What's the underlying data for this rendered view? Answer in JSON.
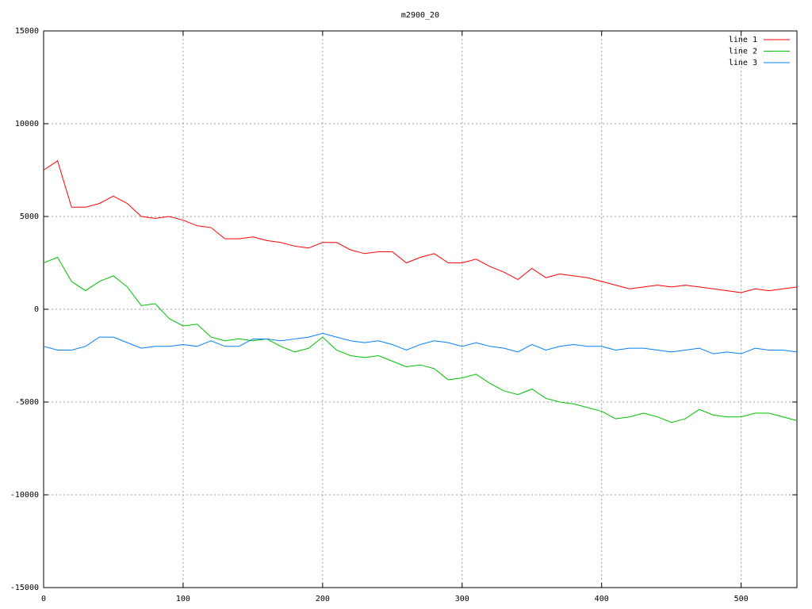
{
  "chart_data": {
    "type": "line",
    "title": "m2900_20",
    "x": [
      0,
      10,
      20,
      30,
      40,
      50,
      60,
      70,
      80,
      90,
      100,
      110,
      120,
      130,
      140,
      150,
      160,
      170,
      180,
      190,
      200,
      210,
      220,
      230,
      240,
      250,
      260,
      270,
      280,
      290,
      300,
      310,
      320,
      330,
      340,
      350,
      360,
      370,
      380,
      390,
      400,
      410,
      420,
      430,
      440,
      450,
      460,
      470,
      480,
      490,
      500,
      510,
      520,
      530,
      540
    ],
    "series": [
      {
        "name": "line 1",
        "color": "#ff0000",
        "values": [
          7500,
          8000,
          5500,
          5500,
          5700,
          6100,
          5700,
          5000,
          4900,
          5000,
          4800,
          4500,
          4400,
          3800,
          3800,
          3900,
          3700,
          3600,
          3400,
          3300,
          3600,
          3600,
          3200,
          3000,
          3100,
          3100,
          2500,
          2800,
          3000,
          2500,
          2500,
          2700,
          2300,
          2000,
          1600,
          2200,
          1700,
          1900,
          1800,
          1700,
          1500,
          1300,
          1100,
          1200,
          1300,
          1200,
          1300,
          1200,
          1100,
          1000,
          900,
          1100,
          1000,
          1100,
          1200
        ]
      },
      {
        "name": "line 2",
        "color": "#00c000",
        "values": [
          2500,
          2800,
          1500,
          1000,
          1500,
          1800,
          1200,
          200,
          300,
          -500,
          -900,
          -800,
          -1500,
          -1700,
          -1600,
          -1700,
          -1600,
          -2000,
          -2300,
          -2100,
          -1500,
          -2200,
          -2500,
          -2600,
          -2500,
          -2800,
          -3100,
          -3000,
          -3200,
          -3800,
          -3700,
          -3500,
          -4000,
          -4400,
          -4600,
          -4300,
          -4800,
          -5000,
          -5100,
          -5300,
          -5500,
          -5900,
          -5800,
          -5600,
          -5800,
          -6100,
          -5900,
          -5400,
          -5700,
          -5800,
          -5800,
          -5600,
          -5600,
          -5800,
          -6000
        ]
      },
      {
        "name": "line 3",
        "color": "#0080ff",
        "values": [
          -2000,
          -2200,
          -2200,
          -2000,
          -1500,
          -1500,
          -1800,
          -2100,
          -2000,
          -2000,
          -1900,
          -2000,
          -1700,
          -2000,
          -2000,
          -1600,
          -1600,
          -1700,
          -1600,
          -1500,
          -1300,
          -1500,
          -1700,
          -1800,
          -1700,
          -1900,
          -2200,
          -1900,
          -1700,
          -1800,
          -2000,
          -1800,
          -2000,
          -2100,
          -2300,
          -1900,
          -2200,
          -2000,
          -1900,
          -2000,
          -2000,
          -2200,
          -2100,
          -2100,
          -2200,
          -2300,
          -2200,
          -2100,
          -2400,
          -2300,
          -2400,
          -2100,
          -2200,
          -2200,
          -2300
        ]
      }
    ],
    "xlim": [
      0,
      540
    ],
    "xticks": [
      0,
      100,
      200,
      300,
      400,
      500
    ],
    "ylim": [
      -15000,
      15000
    ],
    "yticks": [
      -15000,
      -10000,
      -5000,
      0,
      5000,
      10000,
      15000
    ],
    "grid": true,
    "legend": "top-right"
  }
}
